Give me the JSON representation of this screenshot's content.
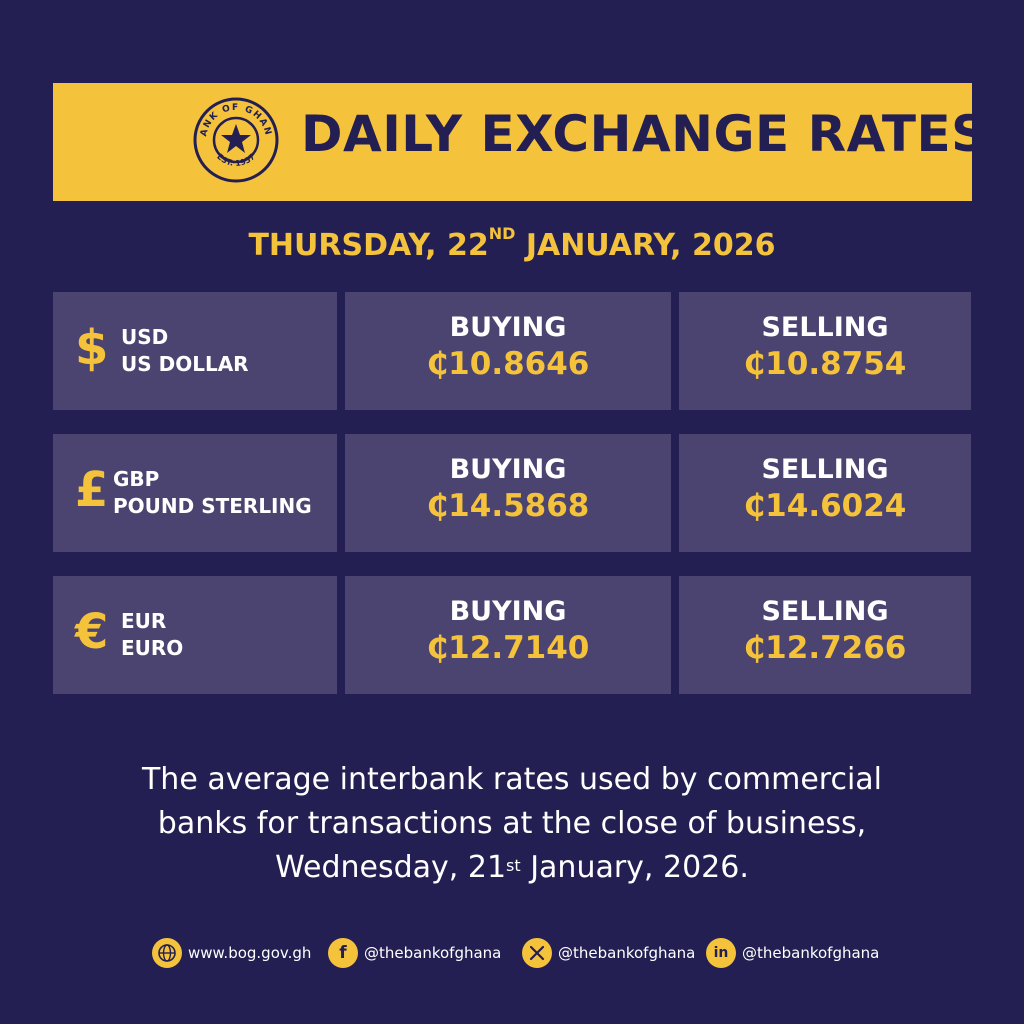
{
  "header": {
    "title": "DAILY EXCHANGE RATES",
    "seal_text_top": "BANK OF GHANA",
    "seal_text_bottom": "EST. 1957"
  },
  "date": {
    "prefix": "THURSDAY, 22",
    "suffix_sup": "ND",
    "rest": " JANUARY, 2026"
  },
  "rates": [
    {
      "symbol": "$",
      "code": "USD",
      "name": "US DOLLAR",
      "buying_label": "BUYING",
      "buying": "₵10.8646",
      "selling_label": "SELLING",
      "selling": "₵10.8754"
    },
    {
      "symbol": "£",
      "code": "GBP",
      "name": "POUND STERLING",
      "buying_label": "BUYING",
      "buying": "₵14.5868",
      "selling_label": "SELLING",
      "selling": "₵14.6024"
    },
    {
      "symbol": "€",
      "code": "EUR",
      "name": "EURO",
      "buying_label": "BUYING",
      "buying": "₵12.7140",
      "selling_label": "SELLING",
      "selling": "₵12.7266"
    }
  ],
  "footnote": {
    "line1": "The average interbank rates used by commercial",
    "line2": "banks for transactions at the close of business,",
    "line3_prefix": "Wednesday, 21",
    "line3_sup": "st",
    "line3_rest": " January, 2026."
  },
  "social": {
    "website": "www.bog.gov.gh",
    "facebook": "@thebankofghana",
    "x": "@thebankofghana",
    "linkedin": "@thebankofghana",
    "accent_color": "#f5c33b",
    "background_color": "#231f52"
  }
}
